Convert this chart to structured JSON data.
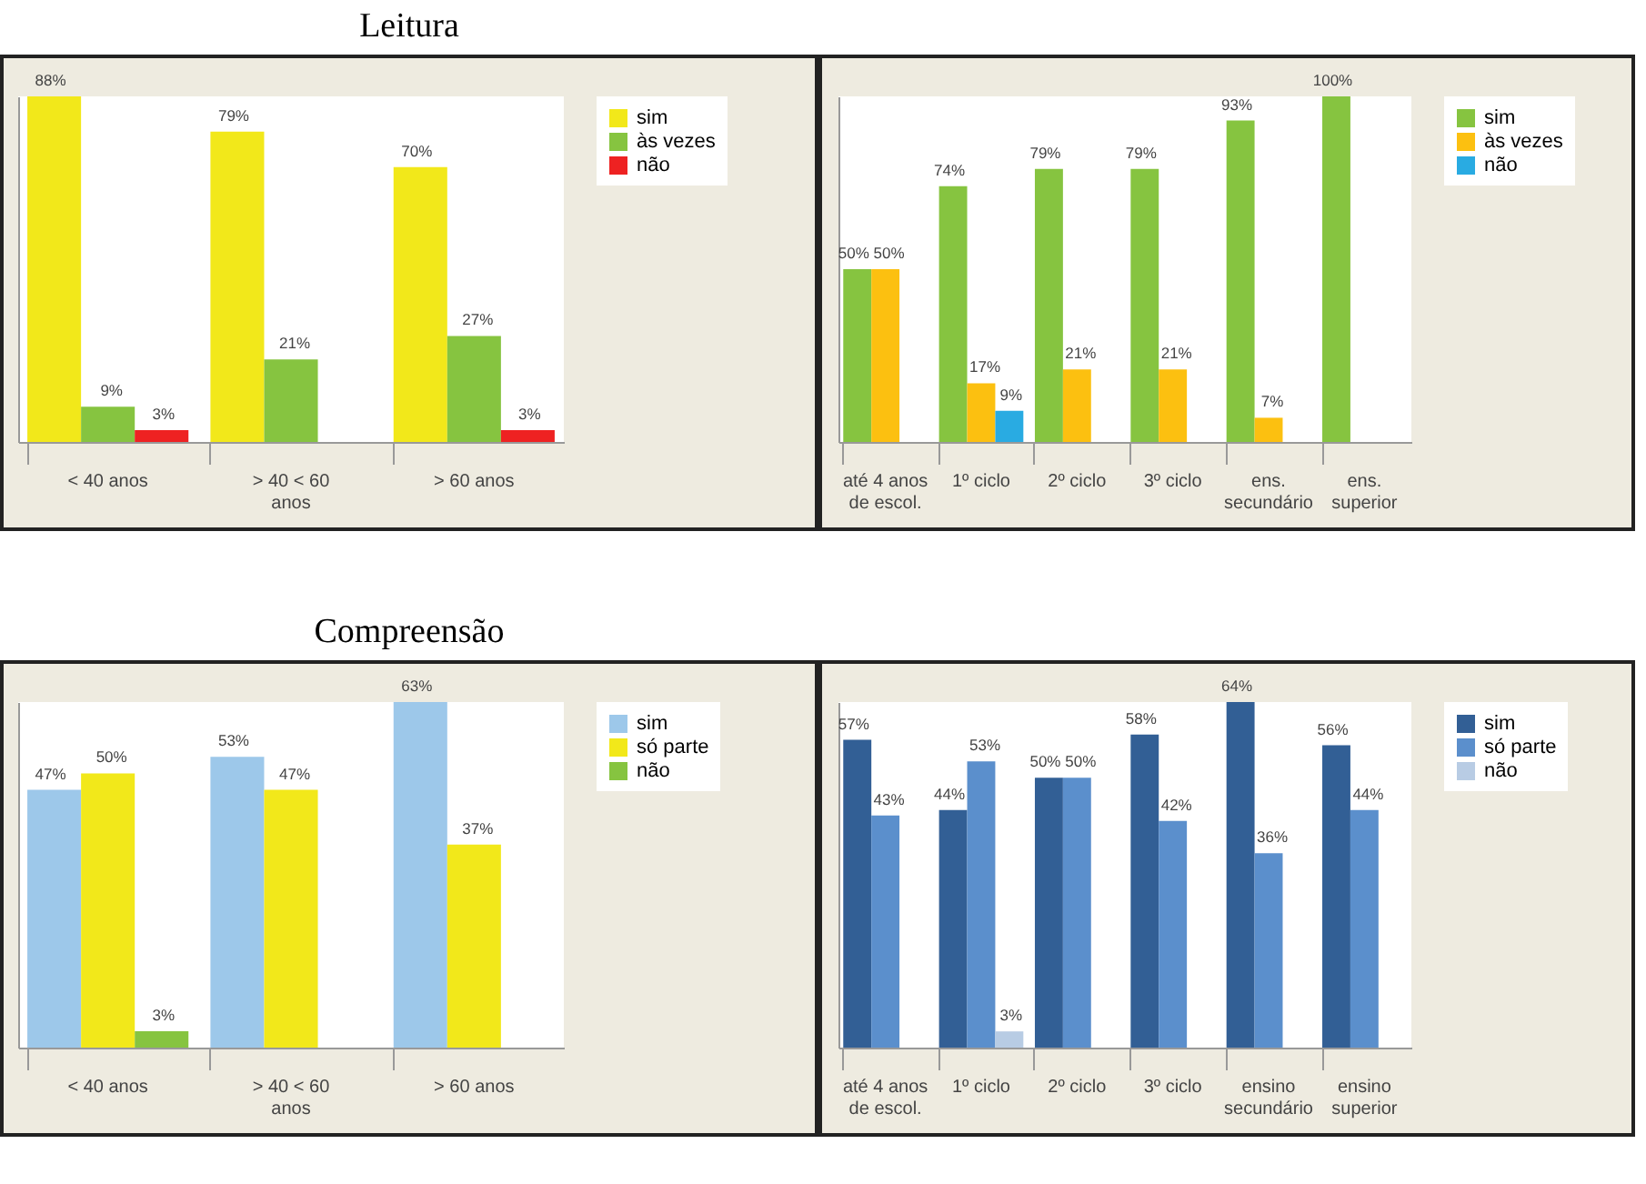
{
  "chart_data": [
    {
      "type": "bar",
      "title": "Leitura",
      "categories": [
        "< 40 anos",
        "> 40 < 60 anos",
        "> 60 anos"
      ],
      "legend": "right",
      "series": [
        {
          "name": "sim",
          "color": "#f2e81a",
          "values": [
            88,
            79,
            70
          ],
          "value_labels": [
            "88%",
            "79%",
            "70%"
          ]
        },
        {
          "name": "às vezes",
          "color": "#86c440",
          "values": [
            9,
            21,
            27
          ],
          "value_labels": [
            "9%",
            "21%",
            "27%"
          ]
        },
        {
          "name": "não",
          "color": "#ee2222",
          "values": [
            3,
            null,
            3
          ],
          "value_labels": [
            "3%",
            null,
            "3%"
          ]
        }
      ]
    },
    {
      "type": "bar",
      "categories": [
        "até 4 anos de escol.",
        "1º ciclo",
        "2º ciclo",
        "3º ciclo",
        "ens. secundário",
        "ens. superior"
      ],
      "legend": "right",
      "series": [
        {
          "name": "sim",
          "color": "#86c440",
          "values": [
            50,
            74,
            79,
            79,
            93,
            100
          ],
          "value_labels": [
            "50%",
            "74%",
            "79%",
            "79%",
            "93%",
            "100%"
          ]
        },
        {
          "name": "às vezes",
          "color": "#fcc010",
          "values": [
            50,
            17,
            21,
            21,
            7,
            null
          ],
          "value_labels": [
            "50%",
            "17%",
            "21%",
            "21%",
            "7%",
            null
          ]
        },
        {
          "name": "não",
          "color": "#29abe2",
          "values": [
            null,
            9,
            null,
            null,
            null,
            null
          ],
          "value_labels": [
            null,
            "9%",
            null,
            null,
            null,
            null
          ]
        }
      ]
    },
    {
      "type": "bar",
      "title": "Compreensão",
      "categories": [
        "< 40 anos",
        "> 40 < 60 anos",
        "> 60 anos"
      ],
      "legend": "right",
      "series": [
        {
          "name": "sim",
          "color": "#9dc8ea",
          "values": [
            47,
            53,
            63
          ],
          "value_labels": [
            "47%",
            "53%",
            "63%"
          ]
        },
        {
          "name": "só parte",
          "color": "#f2e81a",
          "values": [
            50,
            47,
            37
          ],
          "value_labels": [
            "50%",
            "47%",
            "37%"
          ]
        },
        {
          "name": "não",
          "color": "#86c440",
          "values": [
            3,
            null,
            null
          ],
          "value_labels": [
            "3%",
            null,
            null
          ]
        }
      ]
    },
    {
      "type": "bar",
      "categories": [
        "até 4 anos de escol.",
        "1º ciclo",
        "2º ciclo",
        "3º ciclo",
        "ensino secundário",
        "ensino superior"
      ],
      "legend": "right",
      "series": [
        {
          "name": "sim",
          "color": "#325f95",
          "values": [
            57,
            44,
            50,
            58,
            64,
            56
          ],
          "value_labels": [
            "57%",
            "44%",
            "50%",
            "58%",
            "64%",
            "56%"
          ]
        },
        {
          "name": "só parte",
          "color": "#5b8fcc",
          "values": [
            43,
            53,
            50,
            42,
            36,
            44
          ],
          "value_labels": [
            "43%",
            "53%",
            "50%",
            "42%",
            "36%",
            "44%"
          ]
        },
        {
          "name": "não",
          "color": "#b8cce4",
          "values": [
            null,
            3,
            null,
            null,
            null,
            null
          ],
          "value_labels": [
            null,
            "3%",
            null,
            null,
            null,
            null
          ]
        }
      ]
    }
  ]
}
